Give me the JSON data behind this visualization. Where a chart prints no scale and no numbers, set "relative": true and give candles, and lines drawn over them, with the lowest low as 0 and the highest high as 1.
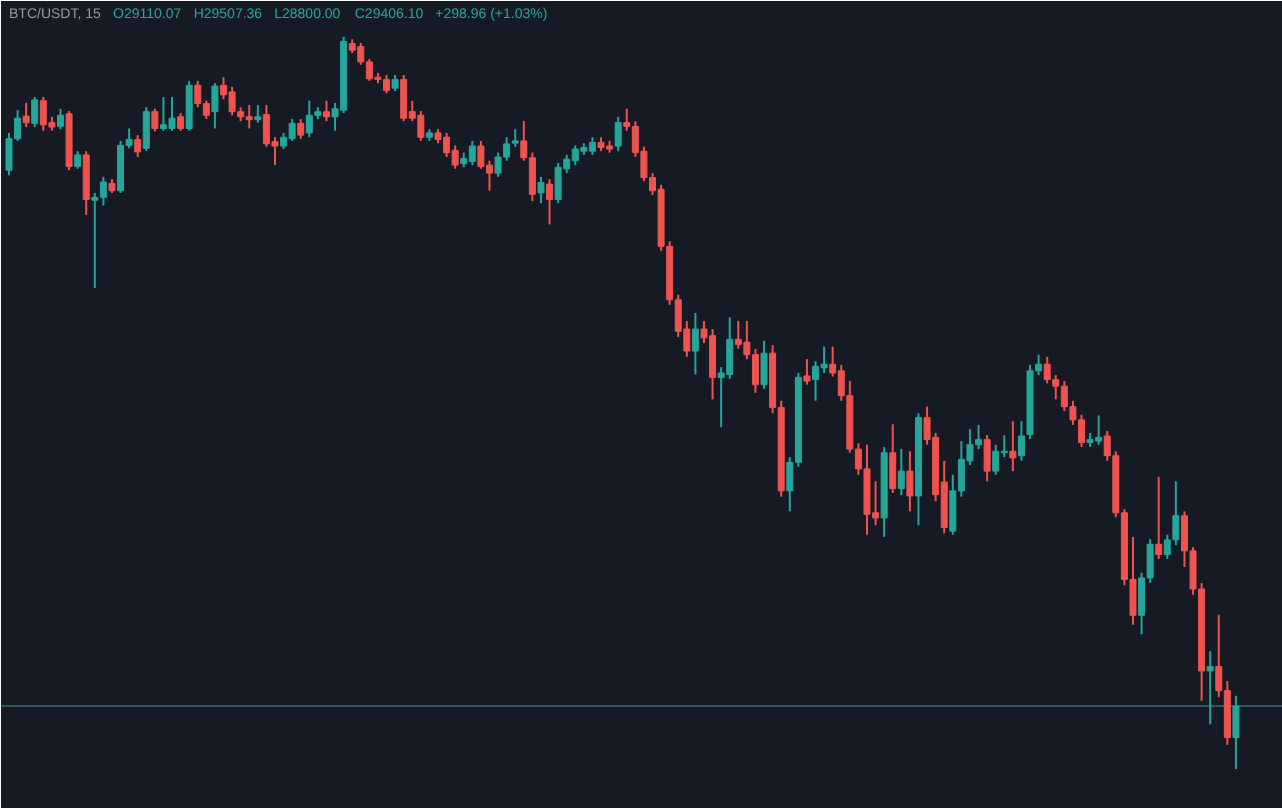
{
  "chart_data": {
    "type": "candlestick",
    "title": "BTC/USDT, 15",
    "annotations": [
      "O29110.07",
      "H29507.36",
      "L28800.00",
      "C29406.10",
      "+298.96 (+1.03%)"
    ],
    "relative": true,
    "categories": [
      null,
      null,
      null,
      null,
      null,
      null,
      null,
      null,
      null,
      null,
      null,
      null,
      null,
      null,
      null,
      null,
      null,
      null,
      null,
      null,
      null,
      null,
      null,
      null,
      null,
      null,
      null,
      null,
      null,
      null,
      null,
      null,
      null,
      null,
      null,
      null,
      null,
      null,
      null,
      null,
      null,
      null,
      null,
      null,
      null,
      null,
      null,
      null,
      null,
      null,
      null,
      null,
      null,
      null,
      null,
      null,
      null,
      null,
      null,
      null,
      null,
      null,
      null,
      null,
      null,
      null,
      null,
      null,
      null,
      null,
      null,
      null,
      null,
      null,
      null,
      null,
      null,
      null,
      null,
      null,
      null,
      null,
      null,
      null,
      null,
      null,
      null,
      null,
      null,
      null,
      null,
      null,
      null,
      null,
      null,
      null,
      null,
      null,
      null,
      null,
      null,
      null,
      null,
      null,
      null,
      null,
      null,
      null,
      null,
      null,
      null,
      null,
      null,
      null,
      null,
      null,
      null,
      null,
      null,
      null,
      null,
      null,
      null,
      null,
      null,
      null,
      null,
      null,
      null,
      null,
      null,
      null,
      null,
      null,
      null,
      null,
      null,
      null,
      null,
      null,
      null,
      null,
      null,
      null
    ],
    "ohlc": [
      [
        0.818,
        0.869,
        0.811,
        0.861
      ],
      [
        0.861,
        0.9,
        0.858,
        0.889
      ],
      [
        0.892,
        0.91,
        0.877,
        0.883
      ],
      [
        0.882,
        0.918,
        0.877,
        0.914
      ],
      [
        0.913,
        0.918,
        0.872,
        0.88
      ],
      [
        0.883,
        0.891,
        0.872,
        0.877
      ],
      [
        0.878,
        0.902,
        0.874,
        0.893
      ],
      [
        0.895,
        0.899,
        0.818,
        0.823
      ],
      [
        0.823,
        0.844,
        0.82,
        0.839
      ],
      [
        0.839,
        0.844,
        0.757,
        0.778
      ],
      [
        0.777,
        0.787,
        0.657,
        0.781
      ],
      [
        0.781,
        0.809,
        0.77,
        0.802
      ],
      [
        0.8,
        0.806,
        0.787,
        0.79
      ],
      [
        0.79,
        0.858,
        0.787,
        0.852
      ],
      [
        0.852,
        0.875,
        0.848,
        0.86
      ],
      [
        0.86,
        0.866,
        0.836,
        0.843
      ],
      [
        0.848,
        0.904,
        0.844,
        0.898
      ],
      [
        0.898,
        0.902,
        0.871,
        0.875
      ],
      [
        0.875,
        0.918,
        0.872,
        0.88
      ],
      [
        0.875,
        0.918,
        0.872,
        0.889
      ],
      [
        0.891,
        0.896,
        0.872,
        0.875
      ],
      [
        0.875,
        0.94,
        0.872,
        0.934
      ],
      [
        0.934,
        0.94,
        0.904,
        0.909
      ],
      [
        0.909,
        0.913,
        0.888,
        0.893
      ],
      [
        0.898,
        0.937,
        0.875,
        0.933
      ],
      [
        0.934,
        0.945,
        0.915,
        0.921
      ],
      [
        0.925,
        0.932,
        0.893,
        0.898
      ],
      [
        0.898,
        0.904,
        0.885,
        0.891
      ],
      [
        0.891,
        0.907,
        0.875,
        0.887
      ],
      [
        0.887,
        0.907,
        0.883,
        0.891
      ],
      [
        0.894,
        0.907,
        0.85,
        0.854
      ],
      [
        0.857,
        0.863,
        0.825,
        0.851
      ],
      [
        0.851,
        0.869,
        0.847,
        0.863
      ],
      [
        0.861,
        0.888,
        0.858,
        0.882
      ],
      [
        0.882,
        0.888,
        0.861,
        0.866
      ],
      [
        0.869,
        0.913,
        0.863,
        0.893
      ],
      [
        0.893,
        0.904,
        0.888,
        0.898
      ],
      [
        0.898,
        0.913,
        0.885,
        0.891
      ],
      [
        0.891,
        0.91,
        0.872,
        0.902
      ],
      [
        0.9,
        1.0,
        0.896,
        0.994
      ],
      [
        0.991,
        0.997,
        0.978,
        0.982
      ],
      [
        0.987,
        0.992,
        0.962,
        0.966
      ],
      [
        0.966,
        0.97,
        0.94,
        0.943
      ],
      [
        0.945,
        0.951,
        0.937,
        0.942
      ],
      [
        0.942,
        0.948,
        0.923,
        0.927
      ],
      [
        0.93,
        0.948,
        0.926,
        0.942
      ],
      [
        0.942,
        0.948,
        0.885,
        0.889
      ],
      [
        0.898,
        0.913,
        0.885,
        0.889
      ],
      [
        0.893,
        0.899,
        0.858,
        0.863
      ],
      [
        0.863,
        0.874,
        0.858,
        0.869
      ],
      [
        0.869,
        0.874,
        0.855,
        0.86
      ],
      [
        0.863,
        0.869,
        0.836,
        0.842
      ],
      [
        0.845,
        0.852,
        0.82,
        0.825
      ],
      [
        0.827,
        0.842,
        0.822,
        0.834
      ],
      [
        0.83,
        0.858,
        0.825,
        0.851
      ],
      [
        0.851,
        0.858,
        0.82,
        0.823
      ],
      [
        0.825,
        0.831,
        0.79,
        0.814
      ],
      [
        0.814,
        0.842,
        0.809,
        0.836
      ],
      [
        0.836,
        0.863,
        0.831,
        0.854
      ],
      [
        0.855,
        0.874,
        0.85,
        0.858
      ],
      [
        0.858,
        0.885,
        0.831,
        0.835
      ],
      [
        0.835,
        0.842,
        0.776,
        0.785
      ],
      [
        0.787,
        0.809,
        0.773,
        0.801
      ],
      [
        0.799,
        0.806,
        0.744,
        0.778
      ],
      [
        0.778,
        0.828,
        0.773,
        0.822
      ],
      [
        0.82,
        0.839,
        0.814,
        0.833
      ],
      [
        0.831,
        0.852,
        0.825,
        0.847
      ],
      [
        0.844,
        0.855,
        0.839,
        0.849
      ],
      [
        0.844,
        0.863,
        0.839,
        0.856
      ],
      [
        0.856,
        0.863,
        0.844,
        0.849
      ],
      [
        0.851,
        0.858,
        0.842,
        0.847
      ],
      [
        0.851,
        0.891,
        0.844,
        0.883
      ],
      [
        0.883,
        0.902,
        0.872,
        0.878
      ],
      [
        0.878,
        0.885,
        0.836,
        0.842
      ],
      [
        0.844,
        0.85,
        0.803,
        0.808
      ],
      [
        0.808,
        0.814,
        0.784,
        0.79
      ],
      [
        0.792,
        0.798,
        0.708,
        0.714
      ],
      [
        0.714,
        0.721,
        0.634,
        0.641
      ],
      [
        0.641,
        0.648,
        0.59,
        0.598
      ],
      [
        0.601,
        0.612,
        0.563,
        0.571
      ],
      [
        0.571,
        0.623,
        0.539,
        0.601
      ],
      [
        0.601,
        0.612,
        0.582,
        0.589
      ],
      [
        0.592,
        0.601,
        0.505,
        0.535
      ],
      [
        0.535,
        0.549,
        0.467,
        0.541
      ],
      [
        0.539,
        0.617,
        0.533,
        0.587
      ],
      [
        0.587,
        0.612,
        0.574,
        0.58
      ],
      [
        0.583,
        0.612,
        0.56,
        0.566
      ],
      [
        0.566,
        0.574,
        0.514,
        0.525
      ],
      [
        0.525,
        0.585,
        0.519,
        0.568
      ],
      [
        0.568,
        0.579,
        0.486,
        0.494
      ],
      [
        0.494,
        0.503,
        0.372,
        0.38
      ],
      [
        0.38,
        0.426,
        0.352,
        0.419
      ],
      [
        0.419,
        0.541,
        0.413,
        0.535
      ],
      [
        0.537,
        0.56,
        0.525,
        0.53
      ],
      [
        0.532,
        0.557,
        0.503,
        0.55
      ],
      [
        0.548,
        0.577,
        0.541,
        0.553
      ],
      [
        0.553,
        0.577,
        0.536,
        0.541
      ],
      [
        0.544,
        0.552,
        0.503,
        0.51
      ],
      [
        0.51,
        0.53,
        0.432,
        0.437
      ],
      [
        0.437,
        0.445,
        0.402,
        0.41
      ],
      [
        0.41,
        0.443,
        0.32,
        0.348
      ],
      [
        0.35,
        0.393,
        0.333,
        0.343
      ],
      [
        0.343,
        0.44,
        0.317,
        0.432
      ],
      [
        0.432,
        0.471,
        0.377,
        0.383
      ],
      [
        0.383,
        0.437,
        0.374,
        0.407
      ],
      [
        0.407,
        0.434,
        0.352,
        0.373
      ],
      [
        0.373,
        0.486,
        0.333,
        0.48
      ],
      [
        0.48,
        0.495,
        0.443,
        0.45
      ],
      [
        0.453,
        0.459,
        0.366,
        0.375
      ],
      [
        0.392,
        0.421,
        0.322,
        0.33
      ],
      [
        0.325,
        0.402,
        0.32,
        0.38
      ],
      [
        0.38,
        0.448,
        0.372,
        0.423
      ],
      [
        0.421,
        0.464,
        0.415,
        0.443
      ],
      [
        0.443,
        0.47,
        0.437,
        0.45
      ],
      [
        0.45,
        0.456,
        0.393,
        0.407
      ],
      [
        0.407,
        0.443,
        0.402,
        0.434
      ],
      [
        0.432,
        0.456,
        0.426,
        0.434
      ],
      [
        0.434,
        0.475,
        0.407,
        0.425
      ],
      [
        0.428,
        0.475,
        0.421,
        0.455
      ],
      [
        0.457,
        0.552,
        0.451,
        0.544
      ],
      [
        0.544,
        0.566,
        0.538,
        0.553
      ],
      [
        0.553,
        0.563,
        0.527,
        0.532
      ],
      [
        0.532,
        0.538,
        0.505,
        0.523
      ],
      [
        0.523,
        0.53,
        0.489,
        0.495
      ],
      [
        0.495,
        0.503,
        0.47,
        0.477
      ],
      [
        0.477,
        0.484,
        0.44,
        0.446
      ],
      [
        0.446,
        0.459,
        0.44,
        0.45
      ],
      [
        0.448,
        0.483,
        0.443,
        0.453
      ],
      [
        0.455,
        0.462,
        0.421,
        0.428
      ],
      [
        0.428,
        0.434,
        0.344,
        0.35
      ],
      [
        0.35,
        0.355,
        0.251,
        0.259
      ],
      [
        0.259,
        0.317,
        0.197,
        0.21
      ],
      [
        0.21,
        0.268,
        0.184,
        0.261
      ],
      [
        0.261,
        0.314,
        0.254,
        0.307
      ],
      [
        0.307,
        0.399,
        0.287,
        0.293
      ],
      [
        0.293,
        0.32,
        0.287,
        0.313
      ],
      [
        0.313,
        0.393,
        0.306,
        0.346
      ],
      [
        0.346,
        0.352,
        0.276,
        0.298
      ],
      [
        0.298,
        0.303,
        0.238,
        0.246
      ],
      [
        0.246,
        0.254,
        0.093,
        0.134
      ],
      [
        0.134,
        0.161,
        0.061,
        0.14
      ],
      [
        0.14,
        0.211,
        0.098,
        0.107
      ],
      [
        0.107,
        0.12,
        0.033,
        0.043
      ],
      [
        0.043,
        0.1,
        0.0,
        0.086
      ]
    ],
    "colors": [
      "#26a69a",
      "#26a69a",
      "#ef5350",
      "#26a69a",
      "#ef5350",
      "#ef5350",
      "#26a69a",
      "#ef5350",
      "#26a69a",
      "#ef5350",
      "#26a69a",
      "#26a69a",
      "#ef5350",
      "#26a69a",
      "#26a69a",
      "#ef5350",
      "#26a69a",
      "#ef5350",
      "#26a69a",
      "#26a69a",
      "#ef5350",
      "#26a69a",
      "#ef5350",
      "#ef5350",
      "#26a69a",
      "#ef5350",
      "#ef5350",
      "#ef5350",
      "#ef5350",
      "#26a69a",
      "#ef5350",
      "#ef5350",
      "#26a69a",
      "#26a69a",
      "#ef5350",
      "#26a69a",
      "#26a69a",
      "#ef5350",
      "#26a69a",
      "#26a69a",
      "#ef5350",
      "#ef5350",
      "#ef5350",
      "#ef5350",
      "#ef5350",
      "#26a69a",
      "#ef5350",
      "#ef5350",
      "#ef5350",
      "#26a69a",
      "#ef5350",
      "#ef5350",
      "#ef5350",
      "#26a69a",
      "#26a69a",
      "#ef5350",
      "#ef5350",
      "#26a69a",
      "#26a69a",
      "#26a69a",
      "#ef5350",
      "#ef5350",
      "#26a69a",
      "#ef5350",
      "#26a69a",
      "#26a69a",
      "#26a69a",
      "#26a69a",
      "#26a69a",
      "#ef5350",
      "#ef5350",
      "#26a69a",
      "#ef5350",
      "#ef5350",
      "#ef5350",
      "#ef5350",
      "#ef5350",
      "#ef5350",
      "#ef5350",
      "#ef5350",
      "#26a69a",
      "#ef5350",
      "#ef5350",
      "#26a69a",
      "#26a69a",
      "#ef5350",
      "#ef5350",
      "#ef5350",
      "#26a69a",
      "#ef5350",
      "#ef5350",
      "#26a69a",
      "#26a69a",
      "#ef5350",
      "#26a69a",
      "#26a69a",
      "#ef5350",
      "#ef5350",
      "#ef5350",
      "#ef5350",
      "#ef5350",
      "#ef5350",
      "#26a69a",
      "#ef5350",
      "#26a69a",
      "#ef5350",
      "#26a69a",
      "#ef5350",
      "#ef5350",
      "#ef5350",
      "#26a69a",
      "#26a69a",
      "#26a69a",
      "#26a69a",
      "#ef5350",
      "#26a69a",
      "#26a69a",
      "#ef5350",
      "#26a69a",
      "#26a69a",
      "#26a69a",
      "#ef5350",
      "#ef5350",
      "#ef5350",
      "#ef5350",
      "#ef5350",
      "#26a69a",
      "#26a69a",
      "#ef5350",
      "#ef5350",
      "#ef5350",
      "#ef5350",
      "#26a69a",
      "#26a69a",
      "#ef5350",
      "#26a69a",
      "#26a69a",
      "#ef5350",
      "#ef5350",
      "#ef5350",
      "#26a69a",
      "#ef5350",
      "#ef5350",
      "#26a69a"
    ],
    "ref_lines": [
      {
        "axis": "y",
        "value": 0.086,
        "color": "#1f5e59"
      }
    ]
  }
}
